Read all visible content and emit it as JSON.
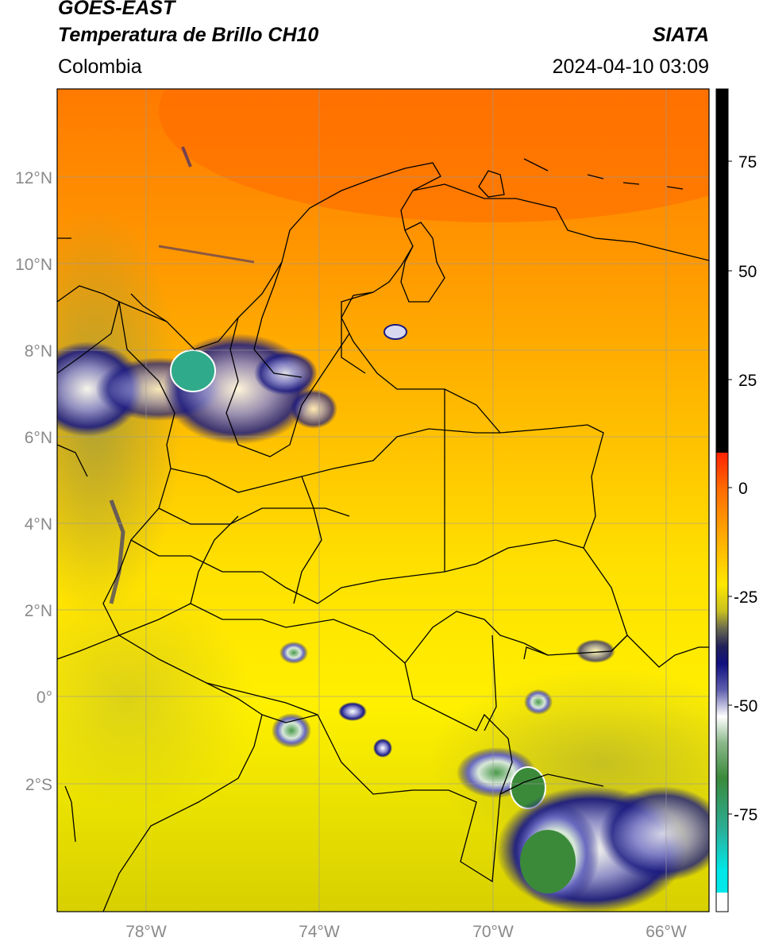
{
  "header": {
    "satellite": "GOES-EAST",
    "product": "Temperatura de Brillo CH10",
    "region": "Colombia",
    "agency": "SIATA",
    "timestamp": "2024-04-10 03:09"
  },
  "map": {
    "lat_labels": [
      "12°N",
      "10°N",
      "8°N",
      "6°N",
      "4°N",
      "2°N",
      "0°",
      "2°S"
    ],
    "lon_labels": [
      "78°W",
      "74°W",
      "70°W",
      "66°W"
    ]
  },
  "colorbar": {
    "tick_labels": [
      "75",
      "50",
      "25",
      "0",
      "-25",
      "-50",
      "-75"
    ],
    "colors": {
      "above_25": "#000000",
      "red": "#ff2200",
      "orange": "#ff8800",
      "yellow": "#ffee00",
      "olive": "#8f8a2a",
      "navy": "#1a1a80",
      "white": "#ffffff",
      "green": "#3a8a3a",
      "teal": "#2ab09a",
      "cyan": "#00e8e8"
    }
  }
}
